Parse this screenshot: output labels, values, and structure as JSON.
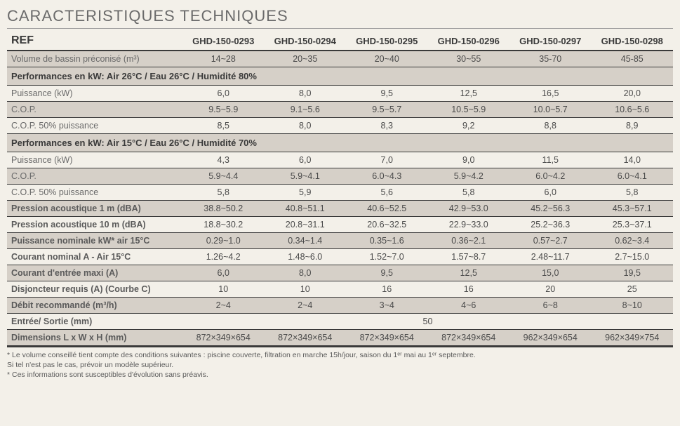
{
  "title": "CARACTERISTIQUES TECHNIQUES",
  "header": {
    "ref": "REF",
    "cols": [
      "GHD-150-0293",
      "GHD-150-0294",
      "GHD-150-0295",
      "GHD-150-0296",
      "GHD-150-0297",
      "GHD-150-0298"
    ]
  },
  "rows": [
    {
      "type": "data",
      "shaded": true,
      "label": "Volume de bassin préconisé (m³)",
      "vals": [
        "14~28",
        "20~35",
        "20~40",
        "30~55",
        "35-70",
        "45-85"
      ]
    },
    {
      "type": "section",
      "label": "Performances en kW: Air 26°C / Eau 26°C / Humidité 80%"
    },
    {
      "type": "data",
      "label": "Puissance (kW)",
      "vals": [
        "6,0",
        "8,0",
        "9,5",
        "12,5",
        "16,5",
        "20,0"
      ]
    },
    {
      "type": "data",
      "shaded": true,
      "label": "C.O.P.",
      "vals": [
        "9.5~5.9",
        "9.1~5.6",
        "9.5~5.7",
        "10.5~5.9",
        "10.0~5.7",
        "10.6~5.6"
      ]
    },
    {
      "type": "data",
      "label": "C.O.P. 50% puissance",
      "vals": [
        "8,5",
        "8,0",
        "8,3",
        "9,2",
        "8,8",
        "8,9"
      ]
    },
    {
      "type": "section",
      "label": "Performances en kW: Air 15°C / Eau 26°C / Humidité 70%"
    },
    {
      "type": "data",
      "label": "Puissance (kW)",
      "vals": [
        "4,3",
        "6,0",
        "7,0",
        "9,0",
        "11,5",
        "14,0"
      ]
    },
    {
      "type": "data",
      "shaded": true,
      "label": "C.O.P.",
      "vals": [
        "5.9~4.4",
        "5.9~4.1",
        "6.0~4.3",
        "5.9~4.2",
        "6.0~4.2",
        "6.0~4.1"
      ]
    },
    {
      "type": "data",
      "label": "C.O.P. 50% puissance",
      "vals": [
        "5,8",
        "5,9",
        "5,6",
        "5,8",
        "6,0",
        "5,8"
      ]
    },
    {
      "type": "data",
      "shaded": true,
      "bold": true,
      "label": "Pression acoustique 1 m (dBA)",
      "vals": [
        "38.8~50.2",
        "40.8~51.1",
        "40.6~52.5",
        "42.9~53.0",
        "45.2~56.3",
        "45.3~57.1"
      ]
    },
    {
      "type": "data",
      "bold": true,
      "label": "Pression acoustique 10 m (dBA)",
      "vals": [
        "18.8~30.2",
        "20.8~31.1",
        "20.6~32.5",
        "22.9~33.0",
        "25.2~36.3",
        "25.3~37.1"
      ]
    },
    {
      "type": "data",
      "shaded": true,
      "bold": true,
      "label": "Puissance nominale kW* air 15°C",
      "vals": [
        "0.29~1.0",
        "0.34~1.4",
        "0.35~1.6",
        "0.36~2.1",
        "0.57~2.7",
        "0.62~3.4"
      ]
    },
    {
      "type": "data",
      "bold": true,
      "label": "Courant nominal A - Air 15°C",
      "vals": [
        "1.26~4.2",
        "1.48~6.0",
        "1.52~7.0",
        "1.57~8.7",
        "2.48~11.7",
        "2.7~15.0"
      ]
    },
    {
      "type": "data",
      "shaded": true,
      "bold": true,
      "label": "Courant d'entrée maxi (A)",
      "vals": [
        "6,0",
        "8,0",
        "9,5",
        "12,5",
        "15,0",
        "19,5"
      ]
    },
    {
      "type": "data",
      "bold": true,
      "label": "Disjoncteur requis (A) (Courbe C)",
      "vals": [
        "10",
        "10",
        "16",
        "16",
        "20",
        "25"
      ]
    },
    {
      "type": "data",
      "shaded": true,
      "bold": true,
      "label": "Débit recommandé (m³/h)",
      "vals": [
        "2~4",
        "2~4",
        "3~4",
        "4~6",
        "6~8",
        "8~10"
      ]
    },
    {
      "type": "merged",
      "bold": true,
      "label": "Entrée/ Sortie  (mm)",
      "val": "50"
    },
    {
      "type": "data",
      "shaded": true,
      "bold": true,
      "bottom": true,
      "label": "Dimensions L x W x H (mm)",
      "vals": [
        "872×349×654",
        "872×349×654",
        "872×349×654",
        "872×349×654",
        "962×349×654",
        "962×349×754"
      ]
    }
  ],
  "footnotes": [
    "* Le volume conseillé tient compte des conditions suivantes : piscine couverte, filtration en marche 15h/jour, saison du 1ᵉʳ mai au 1ᵉʳ septembre.",
    "Si tel n'est pas le cas, prévoir un modèle supérieur.",
    "* Ces informations sont susceptibles d'évolution sans préavis."
  ],
  "style": {
    "background": "#f3f0e9",
    "shaded_bg": "#d6d0c8",
    "border": "#3a3a3a",
    "text": "#4a4a4a",
    "label_text": "#6a6a6a"
  }
}
